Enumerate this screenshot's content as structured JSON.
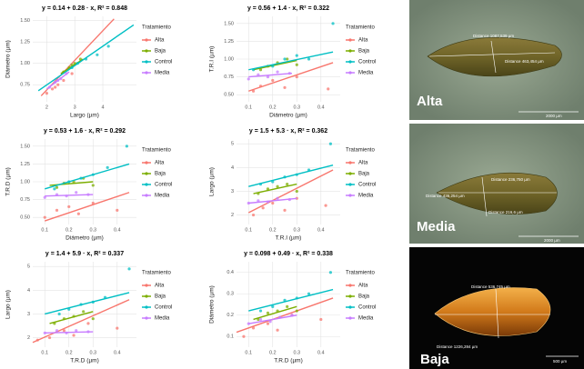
{
  "chart_data": [
    {
      "type": "scatter",
      "title": "y = 0.14 + 0.28 · x, R² = 0.848",
      "x_label": "Largo (µm)",
      "y_label": "Diámetro (µm)",
      "legend_title": "Tratamiento",
      "grid": true,
      "xlim": [
        1.5,
        5.2
      ],
      "xticks": [
        2,
        3,
        4
      ],
      "ylim": [
        0.55,
        1.55
      ],
      "yticks": [
        0.75,
        {
          "value": 1.0,
          "label": "1.00"
        },
        1.25,
        {
          "value": 1.5,
          "label": "1.50"
        }
      ],
      "series": [
        {
          "name": "Alta",
          "color": "#F8766D",
          "x": [
            2.0,
            2.2,
            2.4,
            2.6,
            2.9,
            2.3
          ],
          "values": [
            0.65,
            0.7,
            0.75,
            0.8,
            0.88,
            0.72
          ],
          "fit": {
            "x": [
              1.8,
              4.4
            ],
            "values": [
              0.62,
              1.52
            ]
          }
        },
        {
          "name": "Baja",
          "color": "#7CAE00",
          "x": [
            2.6,
            2.8,
            3.0,
            3.2,
            2.9
          ],
          "values": [
            0.9,
            0.95,
            1.0,
            1.05,
            0.98
          ],
          "fit": {
            "x": [
              2.5,
              3.3
            ],
            "values": [
              0.88,
              1.05
            ]
          }
        },
        {
          "name": "Control",
          "color": "#00BFC4",
          "x": [
            2.9,
            3.1,
            3.4,
            3.8,
            4.2
          ],
          "values": [
            0.95,
            1.0,
            1.05,
            1.1,
            1.2
          ],
          "fit": {
            "x": [
              1.7,
              5.1
            ],
            "values": [
              0.68,
              1.45
            ]
          }
        },
        {
          "name": "Media",
          "color": "#C77CFF",
          "x": [
            2.1,
            2.3,
            2.5,
            2.7,
            2.4
          ],
          "values": [
            0.72,
            0.78,
            0.82,
            0.88,
            0.8
          ],
          "fit": {
            "x": [
              2.0,
              2.8
            ],
            "values": [
              0.7,
              0.9
            ]
          }
        }
      ]
    },
    {
      "type": "scatter",
      "title": "y = 0.56 + 1.4 · x, R² = 0.322",
      "x_label": "Diámetro (µm)",
      "y_label": "T.R.I (µm)",
      "legend_title": "Tratamiento",
      "grid": true,
      "xlim": [
        0.05,
        0.48
      ],
      "xticks": [
        0.1,
        0.2,
        0.3,
        0.4
      ],
      "ylim": [
        0.4,
        1.6
      ],
      "yticks": [
        {
          "value": 0.5,
          "label": "0.50"
        },
        0.75,
        {
          "value": 1.0,
          "label": "1.00"
        },
        1.25,
        {
          "value": 1.5,
          "label": "1.50"
        }
      ],
      "series": [
        {
          "name": "Alta",
          "color": "#F8766D",
          "x": [
            0.12,
            0.15,
            0.2,
            0.25,
            0.3,
            0.43
          ],
          "values": [
            0.55,
            0.62,
            0.7,
            0.6,
            0.75,
            0.58
          ],
          "fit": {
            "x": [
              0.1,
              0.45
            ],
            "values": [
              0.55,
              0.95
            ]
          }
        },
        {
          "name": "Baja",
          "color": "#7CAE00",
          "x": [
            0.15,
            0.18,
            0.22,
            0.26,
            0.3
          ],
          "values": [
            0.85,
            0.9,
            0.95,
            1.0,
            0.92
          ],
          "fit": {
            "x": [
              0.12,
              0.3
            ],
            "values": [
              0.85,
              0.98
            ]
          }
        },
        {
          "name": "Control",
          "color": "#00BFC4",
          "x": [
            0.12,
            0.2,
            0.25,
            0.3,
            0.35,
            0.45
          ],
          "values": [
            0.85,
            0.9,
            1.0,
            1.05,
            1.0,
            1.5
          ],
          "fit": {
            "x": [
              0.1,
              0.45
            ],
            "values": [
              0.85,
              1.1
            ]
          }
        },
        {
          "name": "Media",
          "color": "#C77CFF",
          "x": [
            0.1,
            0.14,
            0.18,
            0.22,
            0.27
          ],
          "values": [
            0.72,
            0.78,
            0.75,
            0.82,
            0.8
          ],
          "fit": {
            "x": [
              0.1,
              0.28
            ],
            "values": [
              0.75,
              0.8
            ]
          }
        }
      ]
    },
    {
      "type": "scatter",
      "title": "y = 0.53 + 1.6 · x, R² = 0.292",
      "x_label": "Diámetro (µm)",
      "y_label": "T.R.D (µm)",
      "legend_title": "Tratamiento",
      "grid": true,
      "xlim": [
        0.05,
        0.48
      ],
      "xticks": [
        0.1,
        0.2,
        0.3,
        0.4
      ],
      "ylim": [
        0.4,
        1.6
      ],
      "yticks": [
        {
          "value": 0.5,
          "label": "0.50"
        },
        0.75,
        {
          "value": 1.0,
          "label": "1.00"
        },
        1.25,
        {
          "value": 1.5,
          "label": "1.50"
        }
      ],
      "series": [
        {
          "name": "Alta",
          "color": "#F8766D",
          "x": [
            0.1,
            0.15,
            0.2,
            0.24,
            0.3,
            0.4
          ],
          "values": [
            0.5,
            0.6,
            0.65,
            0.55,
            0.7,
            0.6
          ],
          "fit": {
            "x": [
              0.1,
              0.45
            ],
            "values": [
              0.45,
              0.85
            ]
          }
        },
        {
          "name": "Baja",
          "color": "#7CAE00",
          "x": [
            0.15,
            0.18,
            0.22,
            0.26,
            0.3
          ],
          "values": [
            0.92,
            0.98,
            1.0,
            1.05,
            0.95
          ],
          "fit": {
            "x": [
              0.12,
              0.3
            ],
            "values": [
              0.95,
              1.0
            ]
          }
        },
        {
          "name": "Control",
          "color": "#00BFC4",
          "x": [
            0.14,
            0.2,
            0.25,
            0.3,
            0.36,
            0.44
          ],
          "values": [
            0.9,
            1.0,
            1.05,
            1.1,
            1.2,
            1.5
          ],
          "fit": {
            "x": [
              0.1,
              0.45
            ],
            "values": [
              0.9,
              1.25
            ]
          }
        },
        {
          "name": "Media",
          "color": "#C77CFF",
          "x": [
            0.1,
            0.15,
            0.19,
            0.23,
            0.28
          ],
          "values": [
            0.78,
            0.82,
            0.8,
            0.85,
            0.82
          ],
          "fit": {
            "x": [
              0.1,
              0.3
            ],
            "values": [
              0.8,
              0.82
            ]
          }
        }
      ]
    },
    {
      "type": "scatter",
      "title": "y = 1.5 + 5.3 · x, R² = 0.362",
      "x_label": "T.R.I (µm)",
      "y_label": "Largo (µm)",
      "legend_title": "Tratamiento",
      "grid": true,
      "xlim": [
        0.05,
        0.48
      ],
      "xticks": [
        0.1,
        0.2,
        0.3,
        0.4
      ],
      "ylim": [
        1.6,
        5.2
      ],
      "yticks": [
        2,
        3,
        4,
        5
      ],
      "series": [
        {
          "name": "Alta",
          "color": "#F8766D",
          "x": [
            0.12,
            0.16,
            0.2,
            0.25,
            0.3,
            0.42
          ],
          "values": [
            2.0,
            2.3,
            2.5,
            2.2,
            2.7,
            2.4
          ],
          "fit": {
            "x": [
              0.1,
              0.45
            ],
            "values": [
              2.1,
              3.9
            ]
          }
        },
        {
          "name": "Baja",
          "color": "#7CAE00",
          "x": [
            0.14,
            0.18,
            0.22,
            0.26,
            0.3
          ],
          "values": [
            2.9,
            3.1,
            3.2,
            3.3,
            3.0
          ],
          "fit": {
            "x": [
              0.12,
              0.3
            ],
            "values": [
              2.9,
              3.3
            ]
          }
        },
        {
          "name": "Control",
          "color": "#00BFC4",
          "x": [
            0.15,
            0.2,
            0.25,
            0.3,
            0.35,
            0.44
          ],
          "values": [
            3.3,
            3.4,
            3.6,
            3.7,
            3.9,
            5.0
          ],
          "fit": {
            "x": [
              0.1,
              0.45
            ],
            "values": [
              3.2,
              4.1
            ]
          }
        },
        {
          "name": "Media",
          "color": "#C77CFF",
          "x": [
            0.1,
            0.14,
            0.18,
            0.22,
            0.27
          ],
          "values": [
            2.5,
            2.6,
            2.55,
            2.7,
            2.65
          ],
          "fit": {
            "x": [
              0.1,
              0.3
            ],
            "values": [
              2.5,
              2.7
            ]
          }
        }
      ]
    },
    {
      "type": "scatter",
      "title": "y = 1.4 + 5.9 · x, R² = 0.337",
      "x_label": "T.R.D (µm)",
      "y_label": "Largo (µm)",
      "legend_title": "Tratamiento",
      "grid": true,
      "xlim": [
        0.05,
        0.48
      ],
      "xticks": [
        0.1,
        0.2,
        0.3,
        0.4
      ],
      "ylim": [
        1.6,
        5.2
      ],
      "yticks": [
        2,
        3,
        4,
        5
      ],
      "series": [
        {
          "name": "Alta",
          "color": "#F8766D",
          "x": [
            0.07,
            0.12,
            0.18,
            0.22,
            0.28,
            0.4
          ],
          "values": [
            1.9,
            2.0,
            2.3,
            2.1,
            2.6,
            2.4
          ],
          "fit": {
            "x": [
              0.05,
              0.45
            ],
            "values": [
              1.8,
              3.6
            ]
          }
        },
        {
          "name": "Baja",
          "color": "#7CAE00",
          "x": [
            0.14,
            0.18,
            0.22,
            0.26,
            0.3
          ],
          "values": [
            2.6,
            2.8,
            2.9,
            3.1,
            2.8
          ],
          "fit": {
            "x": [
              0.12,
              0.3
            ],
            "values": [
              2.6,
              3.1
            ]
          }
        },
        {
          "name": "Control",
          "color": "#00BFC4",
          "x": [
            0.16,
            0.2,
            0.25,
            0.3,
            0.35,
            0.45
          ],
          "values": [
            3.0,
            3.2,
            3.4,
            3.5,
            3.7,
            4.9
          ],
          "fit": {
            "x": [
              0.1,
              0.45
            ],
            "values": [
              3.0,
              3.9
            ]
          }
        },
        {
          "name": "Media",
          "color": "#C77CFF",
          "x": [
            0.1,
            0.15,
            0.19,
            0.23,
            0.28
          ],
          "values": [
            2.2,
            2.3,
            2.2,
            2.3,
            2.25
          ],
          "fit": {
            "x": [
              0.1,
              0.3
            ],
            "values": [
              2.2,
              2.25
            ]
          }
        }
      ]
    },
    {
      "type": "scatter",
      "title": "y = 0.098 + 0.49 · x, R² = 0.338",
      "x_label": "T.R.D (µm)",
      "y_label": "Diámetro (µm)",
      "legend_title": "Tratamiento",
      "grid": true,
      "xlim": [
        0.05,
        0.48
      ],
      "xticks": [
        0.1,
        0.2,
        0.3,
        0.4
      ],
      "ylim": [
        0.05,
        0.45
      ],
      "yticks": [
        0.1,
        0.2,
        0.3,
        0.4
      ],
      "series": [
        {
          "name": "Alta",
          "color": "#F8766D",
          "x": [
            0.08,
            0.12,
            0.18,
            0.22,
            0.28,
            0.4
          ],
          "values": [
            0.1,
            0.14,
            0.16,
            0.13,
            0.2,
            0.18
          ],
          "fit": {
            "x": [
              0.05,
              0.45
            ],
            "values": [
              0.12,
              0.28
            ]
          }
        },
        {
          "name": "Baja",
          "color": "#7CAE00",
          "x": [
            0.14,
            0.18,
            0.22,
            0.26,
            0.3
          ],
          "values": [
            0.18,
            0.21,
            0.22,
            0.24,
            0.22
          ],
          "fit": {
            "x": [
              0.12,
              0.3
            ],
            "values": [
              0.18,
              0.24
            ]
          }
        },
        {
          "name": "Control",
          "color": "#00BFC4",
          "x": [
            0.15,
            0.2,
            0.25,
            0.3,
            0.35,
            0.44
          ],
          "values": [
            0.22,
            0.24,
            0.27,
            0.28,
            0.3,
            0.4
          ],
          "fit": {
            "x": [
              0.1,
              0.45
            ],
            "values": [
              0.22,
              0.32
            ]
          }
        },
        {
          "name": "Media",
          "color": "#C77CFF",
          "x": [
            0.1,
            0.15,
            0.19,
            0.23,
            0.28
          ],
          "values": [
            0.16,
            0.18,
            0.17,
            0.19,
            0.2
          ],
          "fit": {
            "x": [
              0.1,
              0.3
            ],
            "values": [
              0.16,
              0.2
            ]
          }
        }
      ]
    }
  ],
  "images": [
    {
      "label": "Alta",
      "distances": [
        "Distance 1087,539 µm",
        "Distance 463,454 µm"
      ],
      "scale": "2000 µm"
    },
    {
      "label": "Media",
      "distances": [
        "Distance 236,750 µm",
        "Distance 436,254 µm",
        "Distance 216,6 µm"
      ],
      "scale": "2000 µm"
    },
    {
      "label": "Baja",
      "distances": [
        "Distance 536,745 µm",
        "Distance 1226,284 µm"
      ],
      "scale": "500 µm"
    }
  ]
}
